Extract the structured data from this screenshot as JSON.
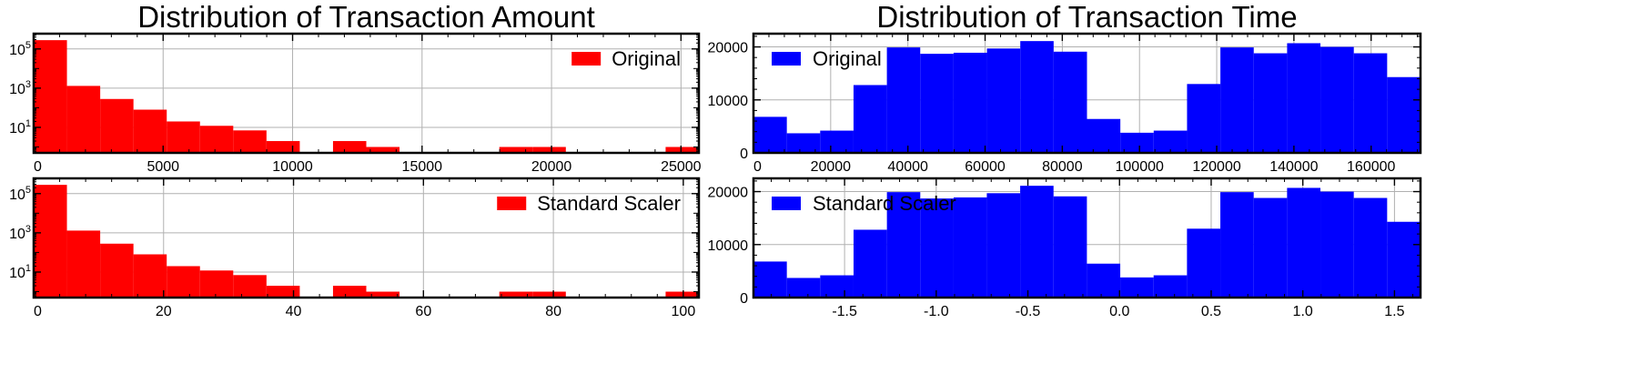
{
  "chart_data": [
    {
      "type": "histogram",
      "title": "Distribution of Transaction Amount",
      "show_title": true,
      "xlim": [
        0,
        25691
      ],
      "ylim": [
        0.5,
        600000
      ],
      "yscale": "log",
      "grid": true,
      "color": "#ff0000",
      "legend": {
        "label": "Original",
        "position": "top-right"
      },
      "xticks": [
        {
          "v": 0,
          "label": "0"
        },
        {
          "v": 5000,
          "label": "5000"
        },
        {
          "v": 10000,
          "label": "10000"
        },
        {
          "v": 15000,
          "label": "15000"
        },
        {
          "v": 20000,
          "label": "20000"
        },
        {
          "v": 25000,
          "label": "25000"
        }
      ],
      "yticks": [
        {
          "v": 10,
          "label": "10",
          "sup": "1"
        },
        {
          "v": 1000,
          "label": "10",
          "sup": "3"
        },
        {
          "v": 100000,
          "label": "10",
          "sup": "5"
        }
      ],
      "bin_edges": [
        0,
        1285,
        2570,
        3854,
        5139,
        6423,
        7708,
        8992,
        10277,
        11561,
        12846,
        14130,
        15415,
        16699,
        17984,
        19268,
        20553,
        21837,
        23122,
        24406,
        25691
      ],
      "counts": [
        280000,
        1300,
        280,
        80,
        20,
        12,
        7,
        2,
        0,
        2,
        1,
        0,
        0,
        0,
        1,
        1,
        0,
        0,
        0,
        1
      ]
    },
    {
      "type": "histogram",
      "title": "Distribution of Transaction Time",
      "show_title": true,
      "xlim": [
        0,
        172792
      ],
      "ylim": [
        0,
        22500
      ],
      "yscale": "linear",
      "grid": true,
      "color": "#0000ff",
      "legend": {
        "label": "Original",
        "position": "top-left"
      },
      "xticks": [
        {
          "v": 0,
          "label": "0"
        },
        {
          "v": 20000,
          "label": "20000"
        },
        {
          "v": 40000,
          "label": "40000"
        },
        {
          "v": 60000,
          "label": "60000"
        },
        {
          "v": 80000,
          "label": "80000"
        },
        {
          "v": 100000,
          "label": "100000"
        },
        {
          "v": 120000,
          "label": "120000"
        },
        {
          "v": 140000,
          "label": "140000"
        },
        {
          "v": 160000,
          "label": "160000"
        }
      ],
      "yticks": [
        {
          "v": 0,
          "label": "0"
        },
        {
          "v": 10000,
          "label": "10000"
        },
        {
          "v": 20000,
          "label": "20000"
        }
      ],
      "bin_edges": [
        0,
        8640,
        17279,
        25919,
        34558,
        43198,
        51838,
        60477,
        69117,
        77756,
        86396,
        95036,
        103675,
        112315,
        120954,
        129594,
        138234,
        146873,
        155513,
        164152,
        172792
      ],
      "counts": [
        6800,
        3700,
        4200,
        12800,
        19900,
        18700,
        18900,
        19700,
        21100,
        19100,
        6400,
        3800,
        4200,
        13000,
        19900,
        18800,
        20700,
        20000,
        18800,
        14300
      ]
    },
    {
      "type": "histogram",
      "title": "",
      "show_title": false,
      "xlim": [
        0,
        102.4
      ],
      "ylim": [
        0.5,
        600000
      ],
      "yscale": "log",
      "grid": true,
      "color": "#ff0000",
      "legend": {
        "label": "Standard Scaler",
        "position": "top-right"
      },
      "xticks": [
        {
          "v": 0,
          "label": "0"
        },
        {
          "v": 20,
          "label": "20"
        },
        {
          "v": 40,
          "label": "40"
        },
        {
          "v": 60,
          "label": "60"
        },
        {
          "v": 80,
          "label": "80"
        },
        {
          "v": 100,
          "label": "100"
        }
      ],
      "yticks": [
        {
          "v": 10,
          "label": "10",
          "sup": "1"
        },
        {
          "v": 1000,
          "label": "10",
          "sup": "3"
        },
        {
          "v": 100000,
          "label": "10",
          "sup": "5"
        }
      ],
      "bin_edges": [
        0,
        5.12,
        10.24,
        15.36,
        20.48,
        25.6,
        30.72,
        35.84,
        40.96,
        46.08,
        51.2,
        56.32,
        61.44,
        66.56,
        71.68,
        76.8,
        81.92,
        87.04,
        92.16,
        97.28,
        102.4
      ],
      "counts": [
        280000,
        1300,
        280,
        80,
        20,
        12,
        7,
        2,
        0,
        2,
        1,
        0,
        0,
        0,
        1,
        1,
        0,
        0,
        0,
        1
      ]
    },
    {
      "type": "histogram",
      "title": "",
      "show_title": false,
      "xlim": [
        -1.997,
        1.642
      ],
      "ylim": [
        0,
        22500
      ],
      "yscale": "linear",
      "grid": true,
      "color": "#0000ff",
      "legend": {
        "label": "Standard Scaler",
        "position": "top-left"
      },
      "xticks": [
        {
          "v": -1.5,
          "label": "-1.5"
        },
        {
          "v": -1.0,
          "label": "-1.0"
        },
        {
          "v": -0.5,
          "label": "-0.5"
        },
        {
          "v": 0.0,
          "label": "0.0"
        },
        {
          "v": 0.5,
          "label": "0.5"
        },
        {
          "v": 1.0,
          "label": "1.0"
        },
        {
          "v": 1.5,
          "label": "1.5"
        }
      ],
      "yticks": [
        {
          "v": 0,
          "label": "0"
        },
        {
          "v": 10000,
          "label": "10000"
        },
        {
          "v": 20000,
          "label": "20000"
        }
      ],
      "bin_edges": [
        -1.997,
        -1.815,
        -1.633,
        -1.451,
        -1.269,
        -1.087,
        -0.905,
        -0.724,
        -0.542,
        -0.36,
        -0.178,
        0.004,
        0.186,
        0.368,
        0.55,
        0.732,
        0.914,
        1.096,
        1.278,
        1.46,
        1.642
      ],
      "counts": [
        6800,
        3700,
        4200,
        12800,
        19900,
        18700,
        18900,
        19700,
        21100,
        19100,
        6400,
        3800,
        4200,
        13000,
        19900,
        18800,
        20700,
        20000,
        18800,
        14300
      ]
    }
  ]
}
